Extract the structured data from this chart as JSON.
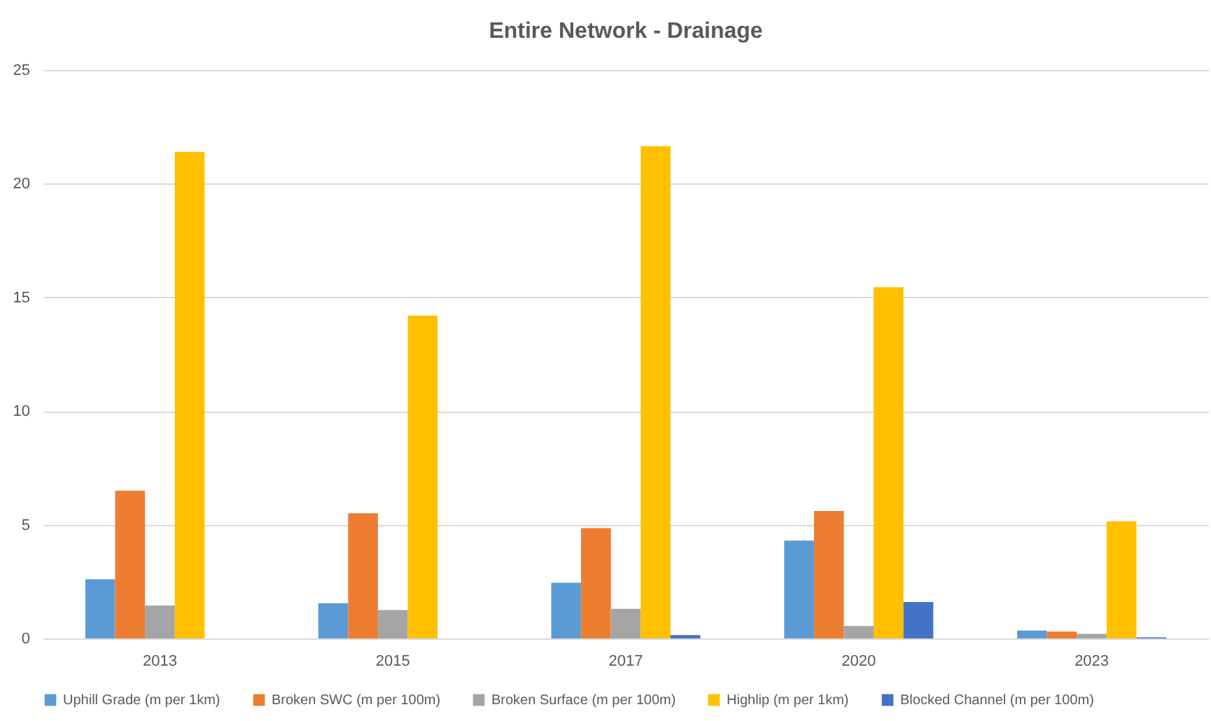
{
  "chart_data": {
    "type": "bar",
    "title": "Entire Network - Drainage",
    "categories": [
      "2013",
      "2015",
      "2017",
      "2020",
      "2023"
    ],
    "series": [
      {
        "name": "Uphill Grade (m per 1km)",
        "color": "#5b9bd5",
        "values": [
          2.6,
          1.55,
          2.45,
          4.3,
          0.35
        ]
      },
      {
        "name": "Broken SWC (m per 100m)",
        "color": "#ed7d31",
        "values": [
          6.5,
          5.5,
          4.85,
          5.6,
          0.3
        ]
      },
      {
        "name": "Broken Surface (m per 100m)",
        "color": "#a5a5a5",
        "values": [
          1.45,
          1.25,
          1.3,
          0.55,
          0.2
        ]
      },
      {
        "name": "Highlip (m per 1km)",
        "color": "#ffc000",
        "values": [
          21.4,
          14.2,
          21.65,
          15.45,
          5.15
        ]
      },
      {
        "name": "Blocked Channel (m per 100m)",
        "color": "#4472c4",
        "values": [
          null,
          null,
          0.15,
          1.6,
          0.05
        ]
      }
    ],
    "ylim": [
      0,
      25
    ],
    "yticks": [
      0,
      5,
      10,
      15,
      20,
      25
    ],
    "grid": "y",
    "legend": "bottom"
  }
}
